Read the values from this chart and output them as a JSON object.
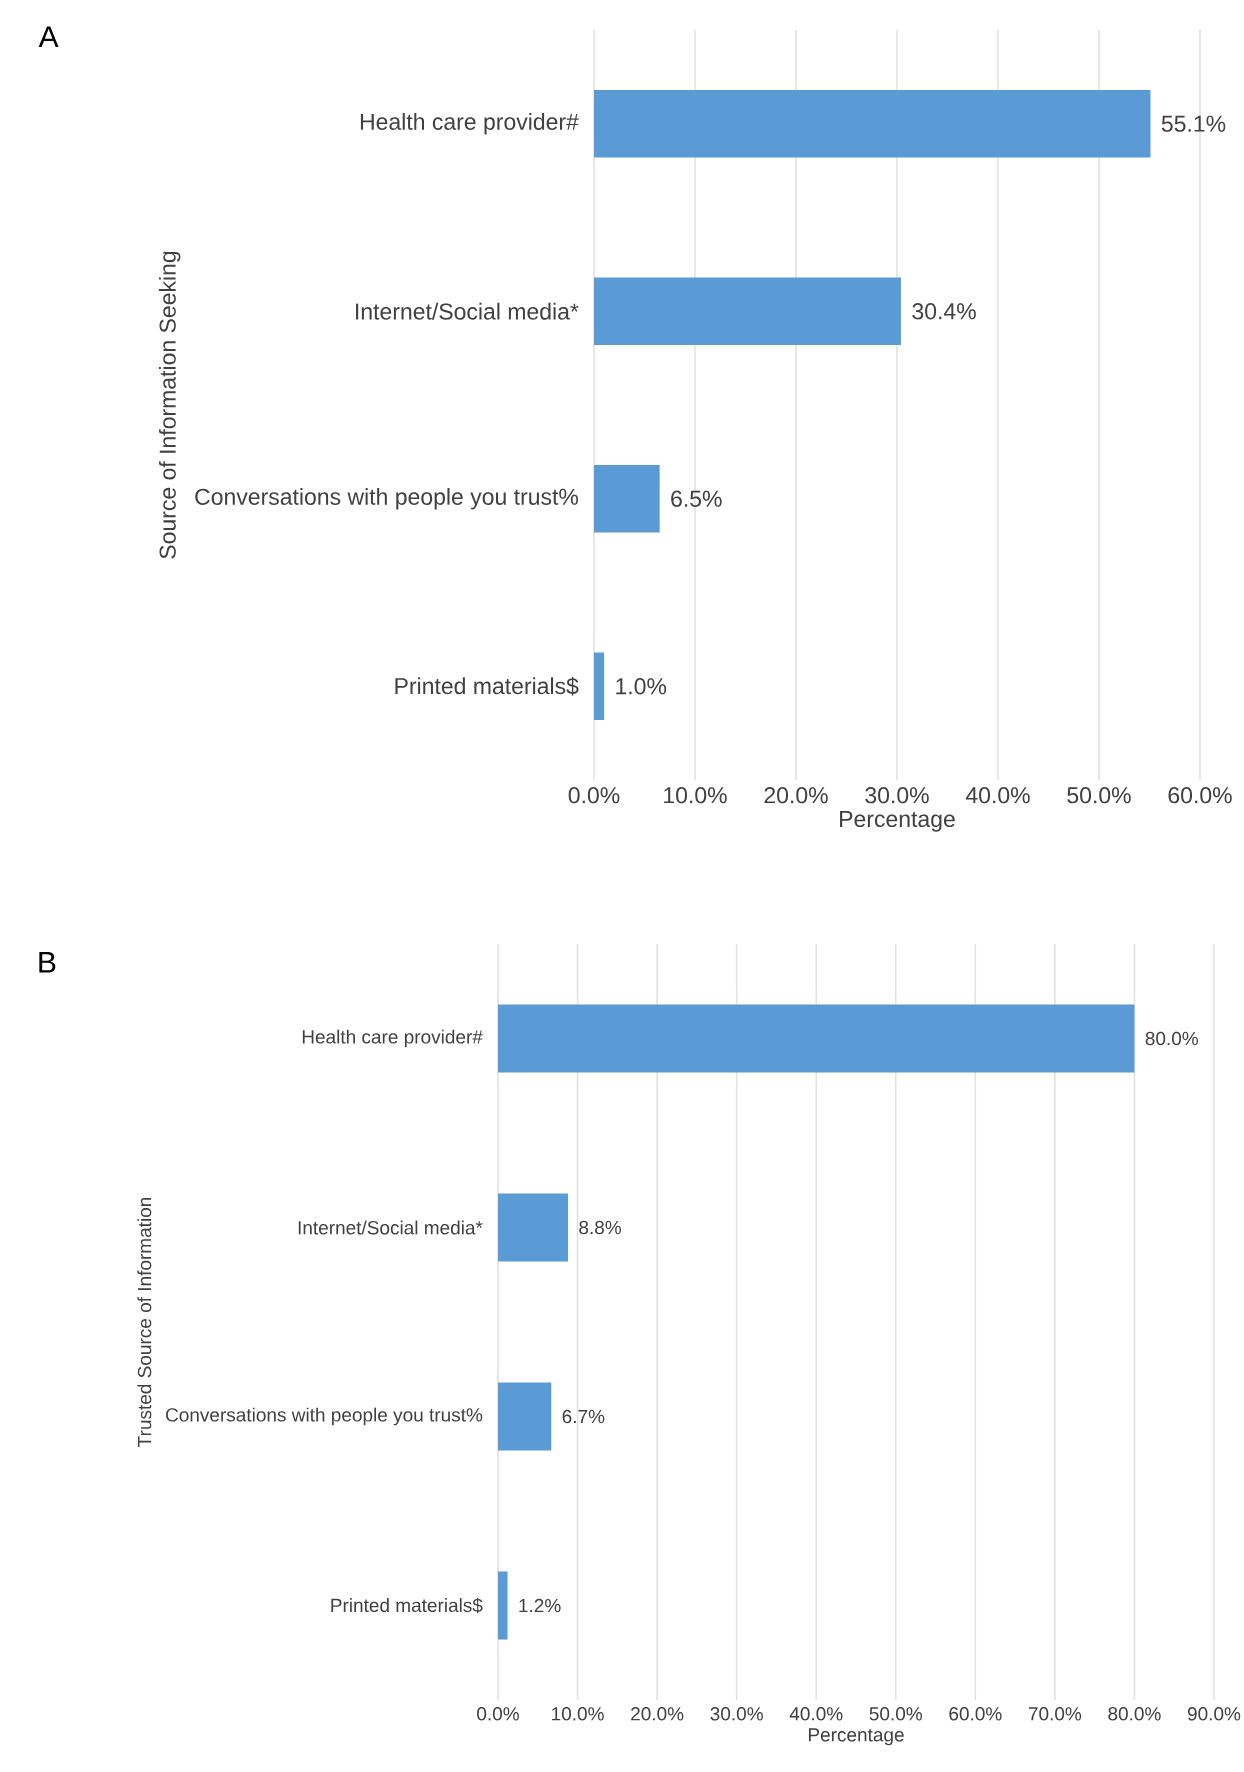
{
  "chart_data": [
    {
      "type": "bar",
      "orientation": "horizontal",
      "title": "A",
      "xlabel": "Percentage",
      "ylabel": "Source of Information Seeking",
      "categories": [
        "Health care provider#",
        "Internet/Social media*",
        "Conversations with people you trust%",
        "Printed materials$"
      ],
      "values": [
        55.1,
        30.4,
        6.5,
        1.0
      ],
      "color": "#5b9bd5",
      "value_labels": [
        "55.1%",
        "30.4%",
        "6.5%",
        "1.0%"
      ],
      "xlim": [
        0,
        60
      ],
      "xticks": [
        {
          "value": 0,
          "label": "0.0%"
        },
        {
          "value": 10,
          "label": "10.0%"
        },
        {
          "value": 20,
          "label": "20.0%"
        },
        {
          "value": 30,
          "label": "30.0%"
        },
        {
          "value": 40,
          "label": "40.0%"
        },
        {
          "value": 50,
          "label": "50.0%"
        },
        {
          "value": 60,
          "label": "60.0%"
        }
      ],
      "grid": "x"
    },
    {
      "type": "bar",
      "orientation": "horizontal",
      "title": "B",
      "xlabel": "Percentage",
      "ylabel": "Trusted Source of Information",
      "categories": [
        "Health care provider#",
        "Internet/Social media*",
        "Conversations with people you trust%",
        "Printed materials$"
      ],
      "values": [
        80.0,
        8.8,
        6.7,
        1.2
      ],
      "color": "#5b9bd5",
      "value_labels": [
        "80.0%",
        "8.8%",
        "6.7%",
        "1.2%"
      ],
      "xlim": [
        0,
        90
      ],
      "xticks": [
        {
          "value": 0,
          "label": "0.0%"
        },
        {
          "value": 10,
          "label": "10.0%"
        },
        {
          "value": 20,
          "label": "20.0%"
        },
        {
          "value": 30,
          "label": "30.0%"
        },
        {
          "value": 40,
          "label": "40.0%"
        },
        {
          "value": 50,
          "label": "50.0%"
        },
        {
          "value": 60,
          "label": "60.0%"
        },
        {
          "value": 70,
          "label": "70.0%"
        },
        {
          "value": 80,
          "label": "80.0%"
        },
        {
          "value": 90,
          "label": "90.0%"
        }
      ],
      "grid": "x"
    }
  ]
}
